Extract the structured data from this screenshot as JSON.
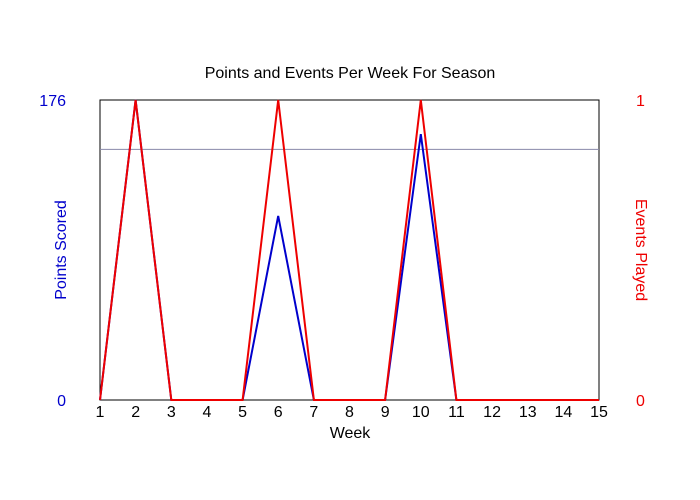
{
  "chart_data": {
    "type": "line",
    "title": "Points and Events Per Week For Season",
    "xlabel": "Week",
    "ylabel_left": "Points Scored",
    "ylabel_right": "Events Played",
    "x": [
      1,
      2,
      3,
      5,
      6,
      7,
      9,
      10,
      11,
      15
    ],
    "x_tick_labels": [
      "1",
      "2",
      "3",
      "4",
      "5",
      "6",
      "7",
      "8",
      "9",
      "10",
      "11",
      "12",
      "13",
      "14",
      "15"
    ],
    "ylim_left": [
      0,
      176
    ],
    "ylim_right": [
      0,
      1
    ],
    "y_left_tick_labels": [
      "0",
      "176"
    ],
    "y_right_tick_labels": [
      "0",
      "1"
    ],
    "reference_line": {
      "axis": "left",
      "value": 147,
      "color": "#8888aa"
    },
    "series": [
      {
        "name": "Points Scored",
        "axis": "left",
        "color": "#0000cc",
        "values": [
          0,
          176,
          0,
          0,
          108,
          0,
          0,
          156,
          0,
          0
        ]
      },
      {
        "name": "Events Played",
        "axis": "right",
        "color": "#ee0000",
        "values": [
          0,
          1,
          0,
          0,
          1,
          0,
          0,
          1,
          0,
          0
        ]
      }
    ],
    "colors": {
      "left_axis": "#0000cc",
      "right_axis": "#ee0000",
      "frame": "#000000"
    },
    "grid": false
  }
}
